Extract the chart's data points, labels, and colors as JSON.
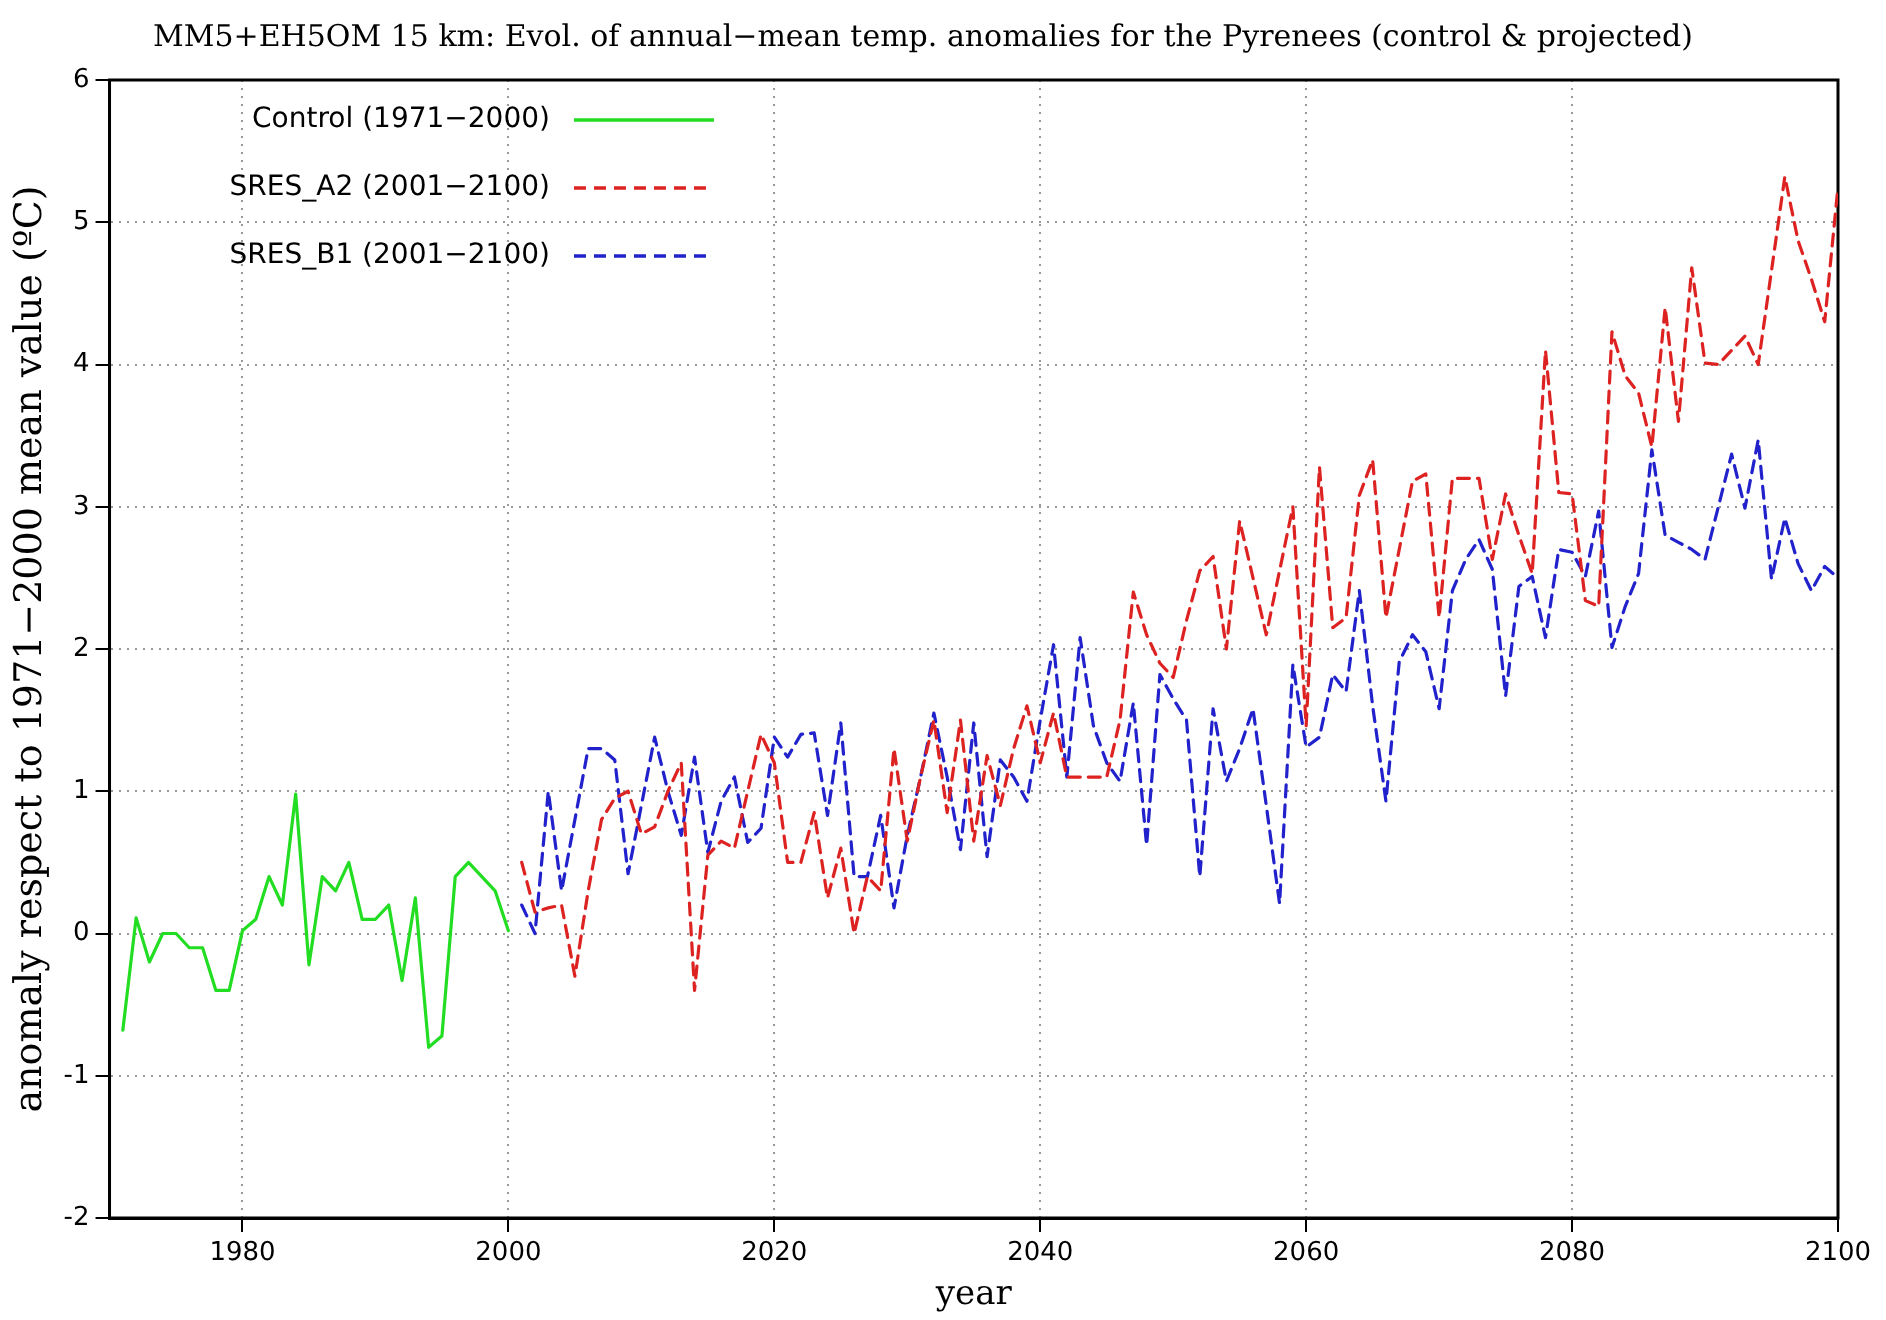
{
  "chart_data": {
    "type": "line",
    "title": "MM5+EH5OM 15 km: Evol. of annual−mean temp. anomalies for the Pyrenees (control & projected)",
    "xlabel": "year",
    "ylabel": "anomaly respect to 1971−2000 mean value (ºC)",
    "xlim": [
      1970,
      2100
    ],
    "xticks": [
      1980,
      2000,
      2020,
      2040,
      2060,
      2080,
      2100
    ],
    "ylim": [
      -2,
      6
    ],
    "yticks": [
      -2,
      -1,
      0,
      1,
      2,
      3,
      4,
      5,
      6
    ],
    "grid": true,
    "legend": "top left",
    "marker": "none",
    "series": [
      {
        "name": "Control (1971−2000)",
        "color": "#22dd22",
        "line_style": "solid",
        "x": [
          1971,
          1972,
          1973,
          1974,
          1975,
          1976,
          1977,
          1978,
          1979,
          1980,
          1981,
          1982,
          1983,
          1984,
          1985,
          1986,
          1987,
          1988,
          1989,
          1990,
          1991,
          1992,
          1993,
          1994,
          1995,
          1996,
          1997,
          1998,
          1999,
          2000
        ],
        "values": [
          -0.68,
          0.11,
          -0.2,
          0,
          0,
          -0.1,
          -0.1,
          -0.4,
          -0.4,
          0.02,
          0.1,
          0.4,
          0.2,
          0.98,
          -0.22,
          0.4,
          0.3,
          0.5,
          0.1,
          0.1,
          0.2,
          -0.33,
          0.25,
          -0.8,
          -0.72,
          0.4,
          0.5,
          0.4,
          0.3,
          0.02
        ]
      },
      {
        "name": "SRES_A2 (2001−2100)",
        "color": "#dd2222",
        "line_style": "dashed",
        "x": [
          2001,
          2002,
          2003,
          2004,
          2005,
          2006,
          2007,
          2008,
          2009,
          2010,
          2011,
          2012,
          2013,
          2014,
          2015,
          2016,
          2017,
          2018,
          2019,
          2020,
          2021,
          2022,
          2023,
          2024,
          2025,
          2026,
          2027,
          2028,
          2029,
          2030,
          2031,
          2032,
          2033,
          2034,
          2035,
          2036,
          2037,
          2038,
          2039,
          2040,
          2041,
          2042,
          2043,
          2044,
          2045,
          2046,
          2047,
          2048,
          2049,
          2050,
          2051,
          2052,
          2053,
          2054,
          2055,
          2056,
          2057,
          2058,
          2059,
          2060,
          2061,
          2062,
          2063,
          2064,
          2065,
          2066,
          2067,
          2068,
          2069,
          2070,
          2071,
          2072,
          2073,
          2074,
          2075,
          2076,
          2077,
          2078,
          2079,
          2080,
          2081,
          2082,
          2083,
          2084,
          2085,
          2086,
          2087,
          2088,
          2089,
          2090,
          2091,
          2092,
          2093,
          2094,
          2095,
          2096,
          2097,
          2098,
          2099,
          2100
        ],
        "values": [
          0.5,
          0.15,
          0.18,
          0.2,
          -0.3,
          0.3,
          0.8,
          0.95,
          1.0,
          0.7,
          0.75,
          1.0,
          1.2,
          -0.4,
          0.55,
          0.65,
          0.6,
          1.0,
          1.4,
          1.2,
          0.5,
          0.5,
          0.85,
          0.25,
          0.6,
          0.0,
          0.4,
          0.3,
          1.3,
          0.65,
          1.1,
          1.5,
          0.85,
          1.5,
          0.65,
          1.25,
          0.9,
          1.3,
          1.6,
          1.2,
          1.55,
          1.1,
          1.1,
          1.1,
          1.1,
          1.5,
          2.4,
          2.1,
          1.9,
          1.8,
          2.2,
          2.55,
          2.65,
          2.0,
          2.9,
          2.5,
          2.1,
          2.55,
          3.0,
          1.46,
          3.28,
          2.15,
          2.22,
          3.08,
          3.33,
          2.22,
          2.7,
          3.18,
          3.23,
          2.22,
          3.2,
          3.2,
          3.2,
          2.63,
          3.09,
          2.8,
          2.53,
          4.1,
          3.1,
          3.09,
          2.34,
          2.3,
          4.23,
          3.92,
          3.8,
          3.42,
          4.4,
          3.6,
          4.68,
          4.01,
          4.0,
          4.1,
          4.2,
          4.0,
          4.66,
          5.32,
          4.87,
          4.6,
          4.3,
          5.25
        ]
      },
      {
        "name": "SRES_B1 (2001−2100)",
        "color": "#2222cc",
        "line_style": "dashed",
        "x": [
          2001,
          2002,
          2003,
          2004,
          2005,
          2006,
          2007,
          2008,
          2009,
          2010,
          2011,
          2012,
          2013,
          2014,
          2015,
          2016,
          2017,
          2018,
          2019,
          2020,
          2021,
          2022,
          2023,
          2024,
          2025,
          2026,
          2027,
          2028,
          2029,
          2030,
          2031,
          2032,
          2033,
          2034,
          2035,
          2036,
          2037,
          2038,
          2039,
          2040,
          2041,
          2042,
          2043,
          2044,
          2045,
          2046,
          2047,
          2048,
          2049,
          2050,
          2051,
          2052,
          2053,
          2054,
          2055,
          2056,
          2057,
          2058,
          2059,
          2060,
          2061,
          2062,
          2063,
          2064,
          2065,
          2066,
          2067,
          2068,
          2069,
          2070,
          2071,
          2072,
          2073,
          2074,
          2075,
          2076,
          2077,
          2078,
          2079,
          2080,
          2081,
          2082,
          2083,
          2084,
          2085,
          2086,
          2087,
          2088,
          2089,
          2090,
          2091,
          2092,
          2093,
          2094,
          2095,
          2096,
          2097,
          2098,
          2099,
          2100
        ],
        "values": [
          0.2,
          0.0,
          1.0,
          0.3,
          0.8,
          1.3,
          1.3,
          1.22,
          0.42,
          0.9,
          1.38,
          1.0,
          0.69,
          1.24,
          0.57,
          0.93,
          1.1,
          0.64,
          0.74,
          1.38,
          1.24,
          1.4,
          1.41,
          0.83,
          1.48,
          0.4,
          0.4,
          0.83,
          0.18,
          0.69,
          1.1,
          1.55,
          1.1,
          0.59,
          1.48,
          0.54,
          1.22,
          1.1,
          0.93,
          1.5,
          2.03,
          1.1,
          2.08,
          1.46,
          1.2,
          1.07,
          1.62,
          0.62,
          1.82,
          1.65,
          1.5,
          0.4,
          1.58,
          1.07,
          1.3,
          1.58,
          0.9,
          0.21,
          1.89,
          1.31,
          1.38,
          1.82,
          1.7,
          2.41,
          1.6,
          0.93,
          1.91,
          2.1,
          1.98,
          1.58,
          2.41,
          2.63,
          2.77,
          2.56,
          1.67,
          2.44,
          2.51,
          2.08,
          2.7,
          2.68,
          2.51,
          2.97,
          2.01,
          2.3,
          2.53,
          3.4,
          2.8,
          2.75,
          2.7,
          2.63,
          3.0,
          3.37,
          2.99,
          3.47,
          2.49,
          2.92,
          2.6,
          2.41,
          2.58,
          2.5
        ]
      }
    ]
  }
}
